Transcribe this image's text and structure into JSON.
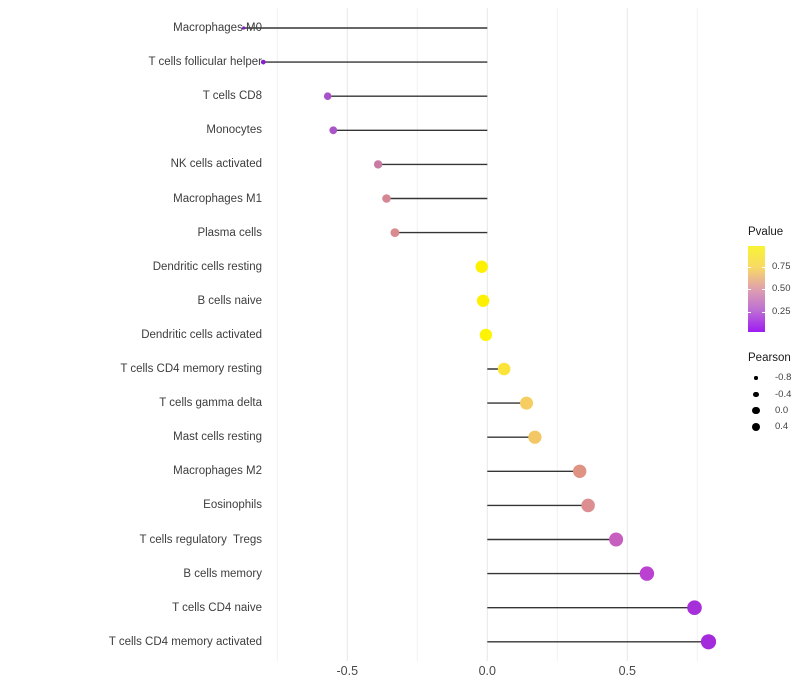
{
  "chart_data": {
    "type": "lollipop",
    "orientation": "horizontal",
    "title": "",
    "xlabel": "",
    "ylabel": "",
    "xlim": [
      -0.95,
      0.85
    ],
    "x_ticks": [
      -0.5,
      0.0,
      0.5
    ],
    "x_tick_labels": [
      "-0.5",
      "0.0",
      "0.5"
    ],
    "gridlines": [
      -0.75,
      -0.5,
      -0.25,
      0.0,
      0.25,
      0.5,
      0.75
    ],
    "grid": "vertical only, light gray, panel background white",
    "stem_origin": 0.0,
    "points": [
      {
        "label": "Macrophages M0",
        "pearson": -0.87,
        "color": "#7b1bc8",
        "radius_px": 1.6
      },
      {
        "label": "T cells follicular helper",
        "pearson": -0.8,
        "color": "#8522cd",
        "radius_px": 2.4
      },
      {
        "label": "T cells CD8",
        "pearson": -0.57,
        "color": "#a851c9",
        "radius_px": 3.8
      },
      {
        "label": "Monocytes",
        "pearson": -0.55,
        "color": "#aa54ca",
        "radius_px": 3.9
      },
      {
        "label": "NK cells activated",
        "pearson": -0.39,
        "color": "#c87ba3",
        "radius_px": 4.2
      },
      {
        "label": "Macrophages M1",
        "pearson": -0.36,
        "color": "#d48693",
        "radius_px": 4.3
      },
      {
        "label": "Plasma cells",
        "pearson": -0.33,
        "color": "#d98b8d",
        "radius_px": 4.4
      },
      {
        "label": "Dendritic cells resting",
        "pearson": -0.02,
        "color": "#fdf101",
        "radius_px": 6.2
      },
      {
        "label": "B cells naive",
        "pearson": -0.015,
        "color": "#fdf101",
        "radius_px": 6.2
      },
      {
        "label": "Dendritic cells activated",
        "pearson": -0.005,
        "color": "#fdf405",
        "radius_px": 6.2
      },
      {
        "label": "T cells CD4 memory resting",
        "pearson": 0.06,
        "color": "#fbe33a",
        "radius_px": 6.3
      },
      {
        "label": "T cells gamma delta",
        "pearson": 0.14,
        "color": "#f6cd60",
        "radius_px": 6.5
      },
      {
        "label": "Mast cells resting",
        "pearson": 0.17,
        "color": "#f3c766",
        "radius_px": 6.6
      },
      {
        "label": "Macrophages M2",
        "pearson": 0.33,
        "color": "#de9383",
        "radius_px": 6.7
      },
      {
        "label": "Eosinophils",
        "pearson": 0.36,
        "color": "#dc8e91",
        "radius_px": 6.8
      },
      {
        "label": "T cells regulatory  Tregs",
        "pearson": 0.46,
        "color": "#c75fbe",
        "radius_px": 7.0
      },
      {
        "label": "B cells memory",
        "pearson": 0.57,
        "color": "#bb42d1",
        "radius_px": 7.2
      },
      {
        "label": "T cells CD4 naive",
        "pearson": 0.74,
        "color": "#a52fd8",
        "radius_px": 7.3
      },
      {
        "label": "T cells CD4 memory activated",
        "pearson": 0.79,
        "color": "#a32bdb",
        "radius_px": 7.6
      }
    ],
    "legend": {
      "pvalue": {
        "title": "Pvalue",
        "tick_labels": [
          "0.75",
          "0.50",
          "0.25"
        ],
        "tick_values": [
          0.75,
          0.5,
          0.25
        ],
        "bar_range": [
          0.98,
          0.03
        ],
        "gradient_top_to_bottom": [
          "#f8f434",
          "#f8d966",
          "#dfa0ae",
          "#bd6ed4",
          "#9e1cf2"
        ]
      },
      "pearson": {
        "title": "Pearson",
        "items": [
          {
            "label": "-0.8",
            "radius_px": 1.7
          },
          {
            "label": "-0.4",
            "radius_px": 2.9
          },
          {
            "label": "0.0",
            "radius_px": 3.9
          },
          {
            "label": "0.4",
            "radius_px": 4.3
          }
        ]
      }
    },
    "colors": {
      "stem": "#353535",
      "axis_text": "#4a4a4a",
      "category_text": "#3d3d3d",
      "grid_major": "#e7e7e7",
      "grid_minor": "#f2f2f2",
      "background": "#ffffff"
    }
  }
}
